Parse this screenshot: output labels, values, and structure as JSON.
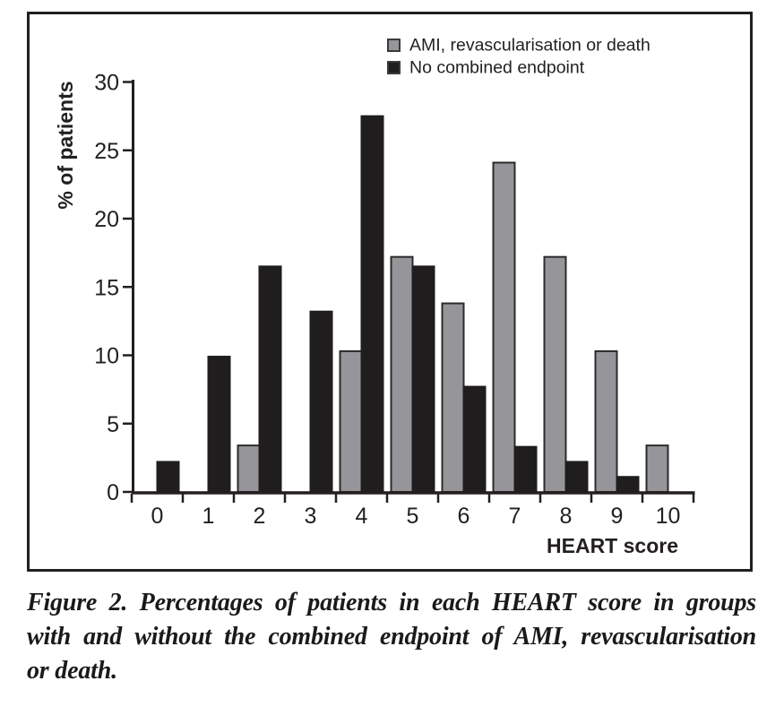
{
  "figure": {
    "caption_lines": [
      "Figure 2. Percentages of patients in each HEART score in groups",
      "with and without the combined endpoint of AMI, revascularisation",
      "or death."
    ]
  },
  "chart_data": {
    "type": "bar",
    "title": "",
    "xlabel": "HEART score",
    "ylabel": "% of patients",
    "categories": [
      "0",
      "1",
      "2",
      "3",
      "4",
      "5",
      "6",
      "7",
      "8",
      "9",
      "10"
    ],
    "series": [
      {
        "name": "AMI, revascularisation or death",
        "color": "#96969a",
        "outline": "#2b2b2b",
        "values": [
          0,
          0,
          3.4,
          0,
          10.3,
          17.2,
          13.8,
          24.1,
          17.2,
          10.3,
          3.4
        ]
      },
      {
        "name": "No combined endpoint",
        "color": "#1f1d1e",
        "outline": "#1f1d1e",
        "values": [
          2.2,
          9.9,
          16.5,
          13.2,
          27.5,
          16.5,
          7.7,
          3.3,
          2.2,
          1.1,
          0
        ]
      }
    ],
    "ylim": [
      0,
      30
    ],
    "yticks": [
      0,
      5,
      10,
      15,
      20,
      25,
      30
    ],
    "grid": false,
    "legend_position": "top-right"
  },
  "colors": {
    "text": "#231f20",
    "frame": "#231f20",
    "axis": "#231f20",
    "background": "#ffffff"
  }
}
